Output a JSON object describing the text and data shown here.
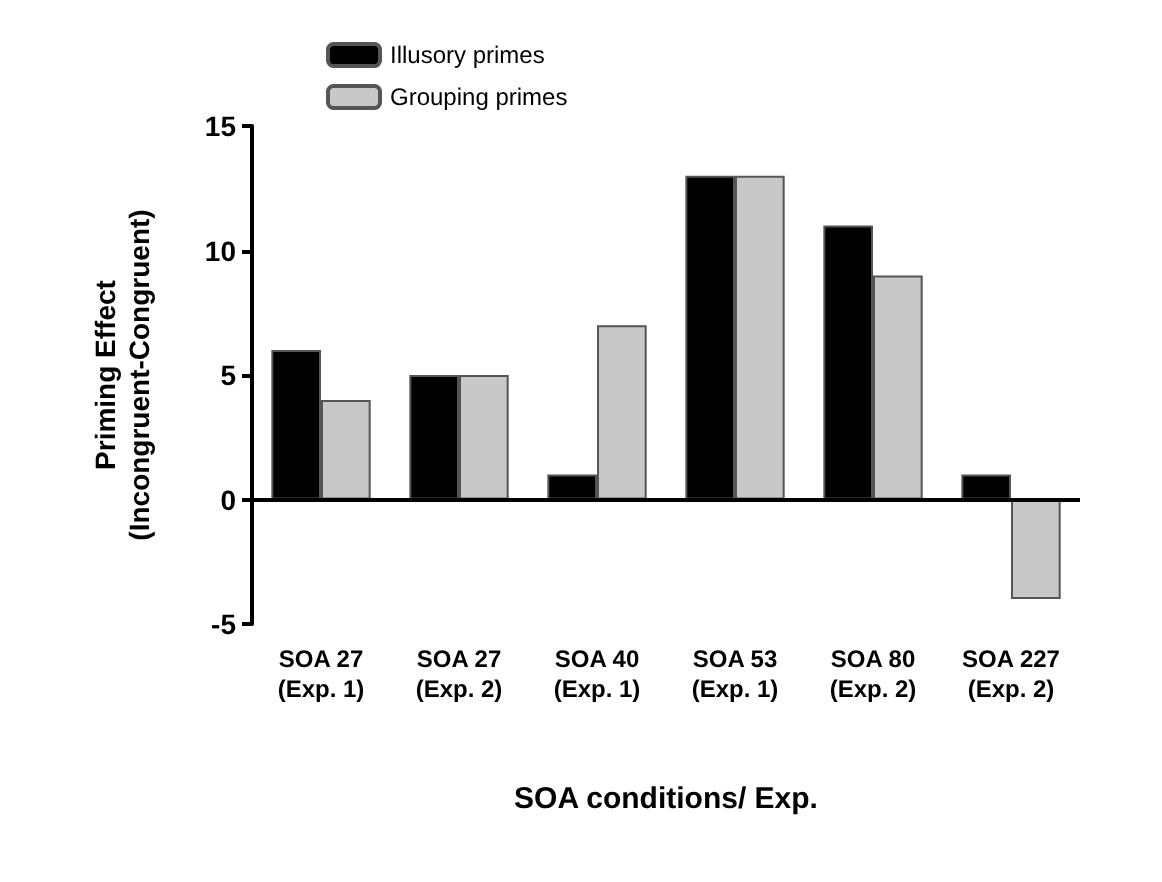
{
  "chart_data": {
    "type": "bar",
    "xlabel": "SOA conditions/ Exp.",
    "ylabel": "Priming Effect\n(Incongruent-Congruent)",
    "categories": [
      "SOA 27\n(Exp. 1)",
      "SOA 27\n(Exp. 2)",
      "SOA 40\n(Exp. 1)",
      "SOA 53\n(Exp. 1)",
      "SOA 80\n(Exp. 2)",
      "SOA 227\n(Exp. 2)"
    ],
    "series": [
      {
        "name": "Illusory primes",
        "color": "#000000",
        "values": [
          6,
          5,
          1,
          13,
          11,
          1
        ]
      },
      {
        "name": "Grouping primes",
        "color": "#c8c8c8",
        "values": [
          4,
          5,
          7,
          13,
          9,
          -4
        ]
      }
    ],
    "ref_lines": [
      {
        "axis": "y",
        "value": 0,
        "color": "#000000"
      }
    ],
    "ylim": [
      -5,
      15
    ],
    "yticks": [
      -5,
      0,
      5,
      10,
      15
    ],
    "grid": false,
    "legend": "top left"
  }
}
